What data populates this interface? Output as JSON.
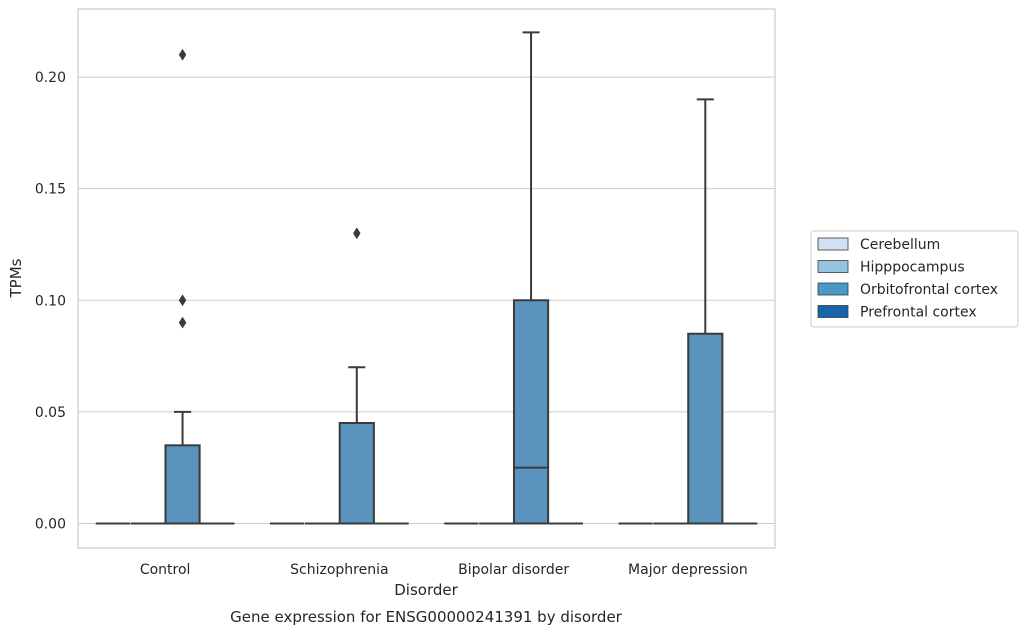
{
  "chart_data": {
    "type": "box",
    "title": "Gene expression for ENSG00000241391 by disorder",
    "xlabel": "Disorder",
    "ylabel": "TPMs",
    "categories": [
      "Control",
      "Schizophrenia",
      "Bipolar disorder",
      "Major depression"
    ],
    "ylim": [
      -0.011,
      0.2305
    ],
    "yticks": [
      0.0,
      0.05,
      0.1,
      0.15,
      0.2
    ],
    "ytick_labels": [
      "0.00",
      "0.05",
      "0.10",
      "0.15",
      "0.20"
    ],
    "grid": true,
    "legend_position": "right",
    "series": [
      {
        "name": "Cerebellum",
        "color": "#d0e1f2",
        "boxes": [
          {
            "category": "Control",
            "q1": 0,
            "median": 0,
            "q3": 0,
            "whisker_low": 0,
            "whisker_high": 0,
            "outliers": []
          },
          {
            "category": "Schizophrenia",
            "q1": 0,
            "median": 0,
            "q3": 0,
            "whisker_low": 0,
            "whisker_high": 0,
            "outliers": []
          },
          {
            "category": "Bipolar disorder",
            "q1": 0,
            "median": 0,
            "q3": 0,
            "whisker_low": 0,
            "whisker_high": 0,
            "outliers": []
          },
          {
            "category": "Major depression",
            "q1": 0,
            "median": 0,
            "q3": 0,
            "whisker_low": 0,
            "whisker_high": 0,
            "outliers": []
          }
        ]
      },
      {
        "name": "Hipppocampus",
        "color": "#94c4df",
        "boxes": [
          {
            "category": "Control",
            "q1": 0,
            "median": 0,
            "q3": 0,
            "whisker_low": 0,
            "whisker_high": 0,
            "outliers": []
          },
          {
            "category": "Schizophrenia",
            "q1": 0,
            "median": 0,
            "q3": 0,
            "whisker_low": 0,
            "whisker_high": 0,
            "outliers": []
          },
          {
            "category": "Bipolar disorder",
            "q1": 0,
            "median": 0,
            "q3": 0,
            "whisker_low": 0,
            "whisker_high": 0,
            "outliers": []
          },
          {
            "category": "Major depression",
            "q1": 0,
            "median": 0,
            "q3": 0,
            "whisker_low": 0,
            "whisker_high": 0,
            "outliers": []
          }
        ]
      },
      {
        "name": "Orbitofrontal cortex",
        "color": "#4a98c9",
        "boxes": [
          {
            "category": "Control",
            "q1": 0,
            "median": 0,
            "q3": 0.035,
            "whisker_low": 0,
            "whisker_high": 0.05,
            "outliers": [
              0.09,
              0.1,
              0.21
            ]
          },
          {
            "category": "Schizophrenia",
            "q1": 0,
            "median": 0,
            "q3": 0.045,
            "whisker_low": 0,
            "whisker_high": 0.07,
            "outliers": [
              0.13
            ]
          },
          {
            "category": "Bipolar disorder",
            "q1": 0,
            "median": 0.025,
            "q3": 0.1,
            "whisker_low": 0,
            "whisker_high": 0.22,
            "outliers": []
          },
          {
            "category": "Major depression",
            "q1": 0,
            "median": 0,
            "q3": 0.085,
            "whisker_low": 0,
            "whisker_high": 0.19,
            "outliers": []
          }
        ]
      },
      {
        "name": "Prefrontal cortex",
        "color": "#1764ab",
        "boxes": [
          {
            "category": "Control",
            "q1": 0,
            "median": 0,
            "q3": 0,
            "whisker_low": 0,
            "whisker_high": 0,
            "outliers": []
          },
          {
            "category": "Schizophrenia",
            "q1": 0,
            "median": 0,
            "q3": 0,
            "whisker_low": 0,
            "whisker_high": 0,
            "outliers": []
          },
          {
            "category": "Bipolar disorder",
            "q1": 0,
            "median": 0,
            "q3": 0,
            "whisker_low": 0,
            "whisker_high": 0,
            "outliers": []
          },
          {
            "category": "Major depression",
            "q1": 0,
            "median": 0,
            "q3": 0,
            "whisker_low": 0,
            "whisker_high": 0,
            "outliers": []
          }
        ]
      }
    ]
  },
  "colors": {
    "box_fill": "#5a94be",
    "line": "#3b3b3b",
    "grid": "#cccccc",
    "frame": "#cccccc"
  }
}
